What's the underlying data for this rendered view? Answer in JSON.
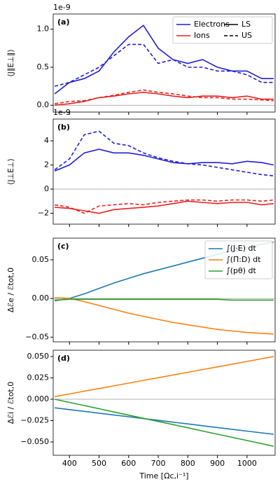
{
  "chart_data": [
    {
      "type": "line",
      "panel_label": "(a)",
      "ylabel": "⟨J∥E⊥∥⟩",
      "offset_text": "1e-9",
      "x": [
        350,
        400,
        450,
        500,
        550,
        600,
        650,
        700,
        750,
        800,
        850,
        900,
        950,
        1000,
        1050,
        1090
      ],
      "series": [
        {
          "color": "#1f1fd6",
          "dashed": false,
          "values": [
            0.15,
            0.3,
            0.35,
            0.45,
            0.7,
            0.9,
            1.05,
            0.75,
            0.6,
            0.55,
            0.6,
            0.5,
            0.45,
            0.45,
            0.35,
            0.35
          ]
        },
        {
          "color": "#1f1fd6",
          "dashed": true,
          "values": [
            0.25,
            0.3,
            0.4,
            0.5,
            0.65,
            0.8,
            0.8,
            0.55,
            0.6,
            0.5,
            0.5,
            0.45,
            0.45,
            0.4,
            0.3,
            0.3
          ]
        },
        {
          "color": "#e8211f",
          "dashed": false,
          "values": [
            0.0,
            0.02,
            0.05,
            0.1,
            0.12,
            0.15,
            0.17,
            0.15,
            0.12,
            0.1,
            0.12,
            0.12,
            0.1,
            0.12,
            0.08,
            0.08
          ]
        },
        {
          "color": "#e8211f",
          "dashed": true,
          "values": [
            0.02,
            0.05,
            0.06,
            0.1,
            0.13,
            0.17,
            0.2,
            0.17,
            0.15,
            0.12,
            0.1,
            0.1,
            0.08,
            0.08,
            0.07,
            0.06
          ]
        }
      ],
      "legend": [
        {
          "label": "Electrons",
          "color": "#1f1fd6",
          "dashed": false
        },
        {
          "label": "Ions",
          "color": "#e8211f",
          "dashed": false
        },
        {
          "label": "LS",
          "color": "#000000",
          "dashed": false
        },
        {
          "label": "US",
          "color": "#000000",
          "dashed": true
        }
      ],
      "legend_columns": 2,
      "zero_line": true,
      "xlim": [
        345,
        1095
      ],
      "xticks": [
        400,
        500,
        600,
        700,
        800,
        900,
        1000
      ],
      "ylim": [
        -0.09,
        1.2
      ],
      "yticks": [
        {
          "value": 0,
          "label": "0.0"
        },
        {
          "value": 0.5,
          "label": "0.5"
        },
        {
          "value": 1,
          "label": "1.0"
        }
      ]
    },
    {
      "type": "line",
      "panel_label": "(b)",
      "ylabel": "⟨J⊥E⊥⟩",
      "offset_text": "1e-9",
      "x": [
        350,
        400,
        450,
        500,
        550,
        600,
        650,
        700,
        750,
        800,
        850,
        900,
        950,
        1000,
        1050,
        1090
      ],
      "series": [
        {
          "color": "#1f1fd6",
          "dashed": false,
          "values": [
            1.5,
            2.0,
            3.0,
            3.3,
            3.0,
            3.0,
            2.8,
            2.5,
            2.2,
            2.1,
            2.2,
            2.2,
            2.1,
            2.3,
            2.2,
            2.0
          ]
        },
        {
          "color": "#1f1fd6",
          "dashed": true,
          "values": [
            1.6,
            2.5,
            4.5,
            4.8,
            3.8,
            3.6,
            3.0,
            2.6,
            2.3,
            2.1,
            2.0,
            1.8,
            1.6,
            1.4,
            1.2,
            1.1
          ]
        },
        {
          "color": "#e8211f",
          "dashed": false,
          "values": [
            -1.5,
            -1.6,
            -1.8,
            -2.0,
            -1.7,
            -1.6,
            -1.5,
            -1.4,
            -1.2,
            -1.0,
            -1.1,
            -1.2,
            -1.1,
            -1.1,
            -1.3,
            -1.2
          ]
        },
        {
          "color": "#e8211f",
          "dashed": true,
          "values": [
            -1.3,
            -1.5,
            -2.0,
            -1.4,
            -1.3,
            -1.2,
            -1.3,
            -1.1,
            -1.0,
            -0.9,
            -0.9,
            -1.0,
            -0.9,
            -0.9,
            -1.0,
            -0.9
          ]
        }
      ],
      "zero_line": true,
      "xlim": [
        345,
        1095
      ],
      "xticks": [
        400,
        500,
        600,
        700,
        800,
        900,
        1000
      ],
      "ylim": [
        -2.9,
        5.8
      ],
      "yticks": [
        {
          "value": -2,
          "label": "−2"
        },
        0,
        2,
        4
      ]
    },
    {
      "type": "line",
      "panel_label": "(c)",
      "ylabel": "Δℰe / ℰtot,0",
      "x": [
        350,
        400,
        450,
        500,
        550,
        600,
        650,
        700,
        750,
        800,
        850,
        900,
        950,
        1000,
        1050,
        1090
      ],
      "series": [
        {
          "name": "∫(J·E) dt",
          "color": "#1f77b4",
          "dashed": false,
          "values": [
            -0.003,
            0,
            0.006,
            0.013,
            0.02,
            0.026,
            0.032,
            0.037,
            0.042,
            0.047,
            0.052,
            0.057,
            0.062,
            0.066,
            0.07,
            0.073
          ]
        },
        {
          "name": "∫(Π:D) dt",
          "color": "#ff7f0e",
          "dashed": false,
          "values": [
            0.001,
            0.0,
            -0.004,
            -0.009,
            -0.014,
            -0.019,
            -0.023,
            -0.027,
            -0.031,
            -0.034,
            -0.037,
            -0.04,
            -0.042,
            -0.044,
            -0.045,
            -0.046
          ]
        },
        {
          "name": "∫(pθ) dt",
          "color": "#2ca02c",
          "dashed": false,
          "values": [
            -0.002,
            -0.001,
            -0.001,
            -0.001,
            -0.001,
            -0.001,
            -0.001,
            -0.001,
            -0.001,
            -0.001,
            -0.001,
            -0.001,
            -0.002,
            -0.002,
            -0.002,
            -0.002
          ]
        }
      ],
      "zero_line": true,
      "xlim": [
        345,
        1095
      ],
      "xticks": [
        400,
        500,
        600,
        700,
        800,
        900,
        1000
      ],
      "ylim": [
        -0.056,
        0.078
      ],
      "yticks": [
        {
          "value": -0.05,
          "label": "−0.05"
        },
        {
          "value": 0,
          "label": "0.00"
        },
        0.05
      ]
    },
    {
      "type": "line",
      "panel_label": "(d)",
      "ylabel": "Δℰi / ℰtot,0",
      "xlabel": "Time [Ωc,i⁻¹]",
      "x": [
        350,
        400,
        450,
        500,
        550,
        600,
        650,
        700,
        750,
        800,
        850,
        900,
        950,
        1000,
        1050,
        1090
      ],
      "series": [
        {
          "color": "#1f77b4",
          "dashed": false,
          "values": [
            -0.01,
            -0.0121,
            -0.0142,
            -0.0163,
            -0.0184,
            -0.0205,
            -0.0226,
            -0.0247,
            -0.0268,
            -0.0289,
            -0.031,
            -0.0331,
            -0.0352,
            -0.0373,
            -0.0394,
            -0.041
          ]
        },
        {
          "color": "#ff7f0e",
          "dashed": false,
          "values": [
            0.003,
            0.0062,
            0.0094,
            0.0125,
            0.0157,
            0.0189,
            0.0221,
            0.0252,
            0.0284,
            0.0316,
            0.0348,
            0.0379,
            0.0411,
            0.0443,
            0.0475,
            0.05
          ]
        },
        {
          "color": "#2ca02c",
          "dashed": false,
          "values": [
            0,
            -0.0037,
            -0.0074,
            -0.0111,
            -0.0149,
            -0.0186,
            -0.0223,
            -0.026,
            -0.0297,
            -0.0334,
            -0.0372,
            -0.0409,
            -0.0446,
            -0.0483,
            -0.052,
            -0.055
          ]
        }
      ],
      "zero_line": true,
      "xlim": [
        345,
        1095
      ],
      "xticks": [
        400,
        500,
        600,
        700,
        800,
        900,
        1000
      ],
      "ylim": [
        -0.0656,
        0.0574
      ],
      "yticks": [
        {
          "value": -0.05,
          "label": "−0.050"
        },
        {
          "value": -0.025,
          "label": "−0.025"
        },
        {
          "value": 0,
          "label": "0.000"
        },
        {
          "value": 0.025,
          "label": "0.025"
        },
        {
          "value": 0.05,
          "label": "0.050"
        }
      ]
    }
  ]
}
